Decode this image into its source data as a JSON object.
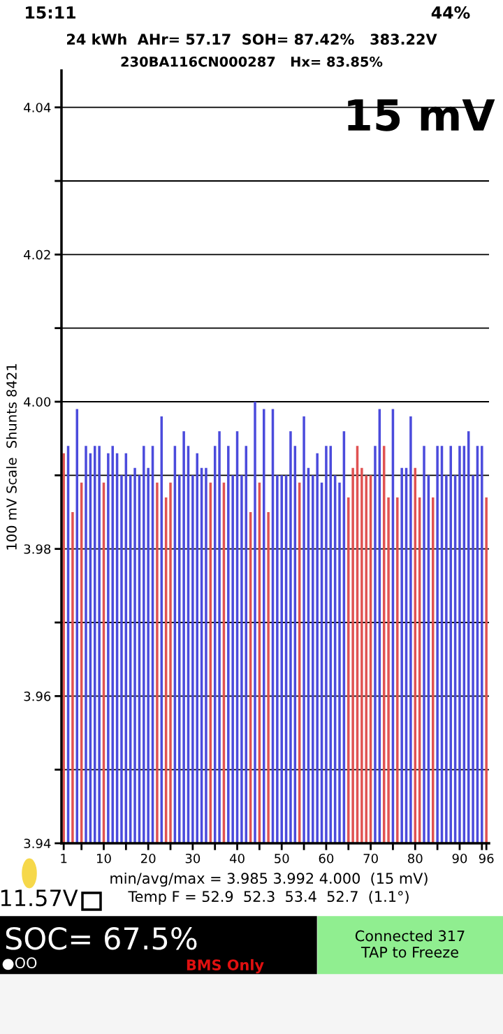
{
  "chart_data": {
    "type": "bar",
    "title": "24 kWh  AHr= 57.17  SOH= 87.42%   383.22V",
    "subtitle": "230BA116CN000287   Hx= 83.85%",
    "ylabel": "100 mV Scale  Shunts 8421",
    "x": [
      1,
      2,
      3,
      4,
      5,
      6,
      7,
      8,
      9,
      10,
      11,
      12,
      13,
      14,
      15,
      16,
      17,
      18,
      19,
      20,
      21,
      22,
      23,
      24,
      25,
      26,
      27,
      28,
      29,
      30,
      31,
      32,
      33,
      34,
      35,
      36,
      37,
      38,
      39,
      40,
      41,
      42,
      43,
      44,
      45,
      46,
      47,
      48,
      49,
      50,
      51,
      52,
      53,
      54,
      55,
      56,
      57,
      58,
      59,
      60,
      61,
      62,
      63,
      64,
      65,
      66,
      67,
      68,
      69,
      70,
      71,
      72,
      73,
      74,
      75,
      76,
      77,
      78,
      79,
      80,
      81,
      82,
      83,
      84,
      85,
      86,
      87,
      88,
      89,
      90,
      91,
      92,
      93,
      94,
      95,
      96
    ],
    "values": [
      3.993,
      3.994,
      3.985,
      3.999,
      3.989,
      3.994,
      3.993,
      3.994,
      3.994,
      3.989,
      3.993,
      3.994,
      3.993,
      3.99,
      3.993,
      3.99,
      3.991,
      3.99,
      3.994,
      3.991,
      3.994,
      3.989,
      3.998,
      3.987,
      3.989,
      3.994,
      3.99,
      3.996,
      3.994,
      3.99,
      3.993,
      3.991,
      3.991,
      3.989,
      3.994,
      3.996,
      3.989,
      3.994,
      3.99,
      3.996,
      3.99,
      3.994,
      3.985,
      4.0,
      3.989,
      3.999,
      3.985,
      3.999,
      3.99,
      3.99,
      3.99,
      3.996,
      3.994,
      3.989,
      3.998,
      3.991,
      3.99,
      3.993,
      3.989,
      3.994,
      3.994,
      3.99,
      3.989,
      3.996,
      3.987,
      3.991,
      3.994,
      3.991,
      3.99,
      3.99,
      3.994,
      3.999,
      3.994,
      3.987,
      3.999,
      3.987,
      3.991,
      3.991,
      3.998,
      3.991,
      3.987,
      3.994,
      3.99,
      3.987,
      3.994,
      3.994,
      3.99,
      3.994,
      3.99,
      3.994,
      3.994,
      3.996,
      3.99,
      3.994,
      3.994,
      3.987
    ],
    "colors": [
      "#e05252",
      "#4b4bdc",
      "#e05252",
      "#4b4bdc",
      "#e05252",
      "#4b4bdc",
      "#4b4bdc",
      "#4b4bdc",
      "#4b4bdc",
      "#e05252",
      "#4b4bdc",
      "#4b4bdc",
      "#4b4bdc",
      "#4b4bdc",
      "#4b4bdc",
      "#4b4bdc",
      "#4b4bdc",
      "#4b4bdc",
      "#4b4bdc",
      "#4b4bdc",
      "#4b4bdc",
      "#e05252",
      "#4b4bdc",
      "#e05252",
      "#e05252",
      "#4b4bdc",
      "#4b4bdc",
      "#4b4bdc",
      "#4b4bdc",
      "#4b4bdc",
      "#4b4bdc",
      "#4b4bdc",
      "#4b4bdc",
      "#e05252",
      "#4b4bdc",
      "#4b4bdc",
      "#e05252",
      "#4b4bdc",
      "#4b4bdc",
      "#4b4bdc",
      "#4b4bdc",
      "#4b4bdc",
      "#e05252",
      "#4b4bdc",
      "#e05252",
      "#4b4bdc",
      "#e05252",
      "#4b4bdc",
      "#4b4bdc",
      "#4b4bdc",
      "#4b4bdc",
      "#4b4bdc",
      "#4b4bdc",
      "#e05252",
      "#4b4bdc",
      "#4b4bdc",
      "#4b4bdc",
      "#4b4bdc",
      "#4b4bdc",
      "#4b4bdc",
      "#4b4bdc",
      "#4b4bdc",
      "#4b4bdc",
      "#4b4bdc",
      "#e05252",
      "#e05252",
      "#e05252",
      "#e05252",
      "#e05252",
      "#e05252",
      "#4b4bdc",
      "#4b4bdc",
      "#e05252",
      "#e05252",
      "#4b4bdc",
      "#e05252",
      "#4b4bdc",
      "#4b4bdc",
      "#4b4bdc",
      "#e05252",
      "#e05252",
      "#4b4bdc",
      "#4b4bdc",
      "#e05252",
      "#4b4bdc",
      "#4b4bdc",
      "#4b4bdc",
      "#4b4bdc",
      "#4b4bdc",
      "#4b4bdc",
      "#4b4bdc",
      "#4b4bdc",
      "#4b4bdc",
      "#4b4bdc",
      "#4b4bdc",
      "#e05252"
    ],
    "xlim": [
      0.5,
      96.6
    ],
    "xticks": [
      1,
      {
        "value": 5,
        "label": null
      },
      10,
      {
        "value": 15,
        "label": null
      },
      20,
      {
        "value": 25,
        "label": null
      },
      30,
      {
        "value": 35,
        "label": null
      },
      40,
      {
        "value": 45,
        "label": null
      },
      50,
      {
        "value": 55,
        "label": null
      },
      60,
      {
        "value": 65,
        "label": null
      },
      70,
      {
        "value": 75,
        "label": null
      },
      80,
      {
        "value": 85,
        "label": null
      },
      90,
      {
        "value": 95,
        "label": null
      },
      96
    ],
    "ylim": [
      3.94,
      4.045
    ],
    "yticks": [
      3.94,
      {
        "value": 3.95,
        "label": null
      },
      3.96,
      {
        "value": 3.97,
        "label": null
      },
      3.98,
      {
        "value": 3.99,
        "label": null
      },
      {
        "value": 4.0,
        "label": "4.00"
      },
      {
        "value": 4.01,
        "label": null
      },
      4.02,
      {
        "value": 4.03,
        "label": null
      },
      4.04
    ],
    "grid": "y",
    "annotations": [
      "15 mV",
      "min/avg/max = 3.985 3.992 4.000  (15 mV)",
      "Temp F = 52.9  52.3  53.4  52.7  (1.1°)",
      "11.57V",
      "SOC= 67.5%",
      "BMS Only",
      "Connected 317\nTAP to Freeze",
      "●OO",
      "15:11",
      "44%"
    ]
  }
}
